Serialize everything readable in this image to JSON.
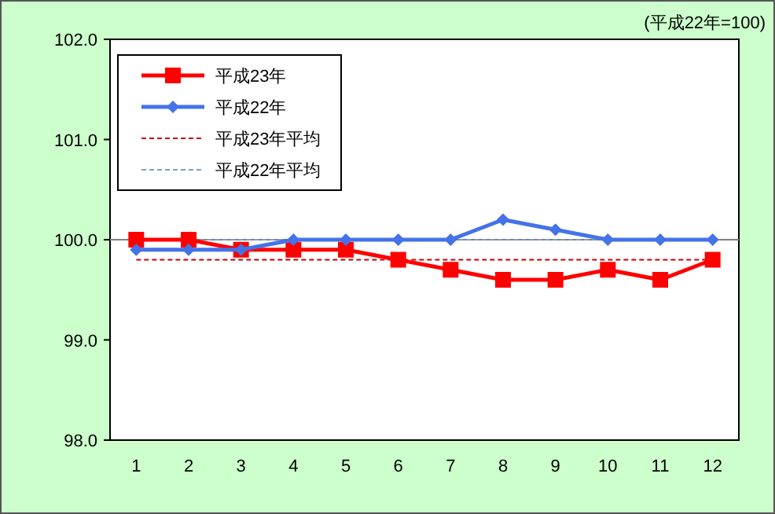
{
  "chart_data": {
    "type": "line",
    "annotations": [
      "(平成22年=100)"
    ],
    "categories": [
      "1",
      "2",
      "3",
      "4",
      "5",
      "6",
      "7",
      "8",
      "9",
      "10",
      "11",
      "12"
    ],
    "series": [
      {
        "name": "平成23年",
        "color": "#ff0000",
        "marker": "square",
        "line_style": "solid",
        "values": [
          100.0,
          100.0,
          99.9,
          99.9,
          99.9,
          99.8,
          99.7,
          99.6,
          99.6,
          99.7,
          99.6,
          99.8
        ]
      },
      {
        "name": "平成22年",
        "color": "#4472e8",
        "marker": "diamond",
        "line_style": "solid",
        "values": [
          99.9,
          99.9,
          99.9,
          100.0,
          100.0,
          100.0,
          100.0,
          100.2,
          100.1,
          100.0,
          100.0,
          100.0
        ]
      },
      {
        "name": "平成23年平均",
        "color": "#cc0000",
        "marker": "none",
        "line_style": "dashed",
        "values": [
          99.8,
          99.8,
          99.8,
          99.8,
          99.8,
          99.8,
          99.8,
          99.8,
          99.8,
          99.8,
          99.8,
          99.8
        ]
      },
      {
        "name": "平成22年平均",
        "color": "#7f9fbf",
        "marker": "none",
        "line_style": "dashed",
        "values": [
          100.0,
          100.0,
          100.0,
          100.0,
          100.0,
          100.0,
          100.0,
          100.0,
          100.0,
          100.0,
          100.0,
          100.0
        ]
      }
    ],
    "ylim": [
      98.0,
      102.0
    ],
    "yticks": [
      {
        "value": 98,
        "label": "98.0"
      },
      {
        "value": 99,
        "label": "99.0"
      },
      {
        "value": 100,
        "label": "100.0"
      },
      {
        "value": 101,
        "label": "101.0"
      },
      {
        "value": 102,
        "label": "102.0"
      }
    ],
    "ref_lines": [
      {
        "axis": "y",
        "value": 100,
        "color": "#808080",
        "line_style": "solid"
      }
    ],
    "grid": false,
    "legend": "top left"
  }
}
